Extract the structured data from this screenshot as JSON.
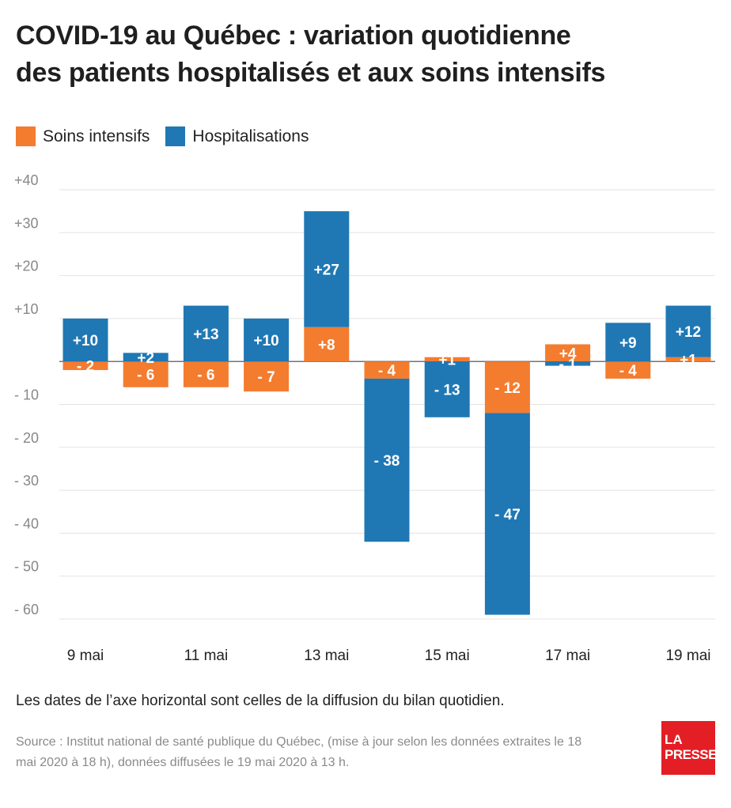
{
  "title_line1": "COVID-19 au Québec : variation quotidienne",
  "title_line2": "des patients hospitalisés et aux soins intensifs",
  "footnote": "Les dates de l’axe horizontal sont celles de la diffusion du bilan quotidien.",
  "source_line1": "Source : Institut national de santé publique du Québec, (mise à jour selon les données extraites le 18",
  "source_line2": "mai 2020 à 18 h), données diffusées le 19 mai 2020 à 13 h.",
  "logo": {
    "line1": "LA",
    "line2": "PRESSE"
  },
  "colors": {
    "soins_intensifs": "#f47c2f",
    "hospitalisations": "#1f78b4",
    "grid": "#e3e3e3",
    "axis_text": "#888888",
    "logo": "#e31e24"
  },
  "chart_data": {
    "type": "bar",
    "stacked": true,
    "categories": [
      "9 mai",
      "10 mai",
      "11 mai",
      "12 mai",
      "13 mai",
      "14 mai",
      "15 mai",
      "16 mai",
      "17 mai",
      "18 mai",
      "19 mai"
    ],
    "x_tick_labels": [
      "9 mai",
      "11 mai",
      "13 mai",
      "15 mai",
      "17 mai",
      "19 mai"
    ],
    "series": [
      {
        "name": "Soins intensifs",
        "values": [
          -2,
          -6,
          -6,
          -7,
          8,
          -4,
          1,
          -12,
          4,
          -4,
          1
        ],
        "labels": [
          "- 2",
          "- 6",
          "- 6",
          "- 7",
          "+8",
          "- 4",
          "+1",
          "- 12",
          "+4",
          "- 4",
          "+1"
        ]
      },
      {
        "name": "Hospitalisations",
        "values": [
          10,
          2,
          13,
          10,
          27,
          -38,
          -13,
          -47,
          -1,
          9,
          12
        ],
        "labels": [
          "+10",
          "+2",
          "+13",
          "+10",
          "+27",
          "- 38",
          "- 13",
          "- 47",
          "- 1",
          "+9",
          "+12"
        ]
      }
    ],
    "y_ticks": [
      40,
      30,
      20,
      10,
      0,
      -10,
      -20,
      -30,
      -40,
      -50,
      -60
    ],
    "y_tick_labels": [
      "+40",
      "+30",
      "+20",
      "+10",
      "",
      "- 10",
      "- 20",
      "- 30",
      "- 40",
      "- 50",
      "- 60"
    ],
    "ylim": [
      -60,
      40
    ],
    "grid": true,
    "legend": "top-left"
  }
}
